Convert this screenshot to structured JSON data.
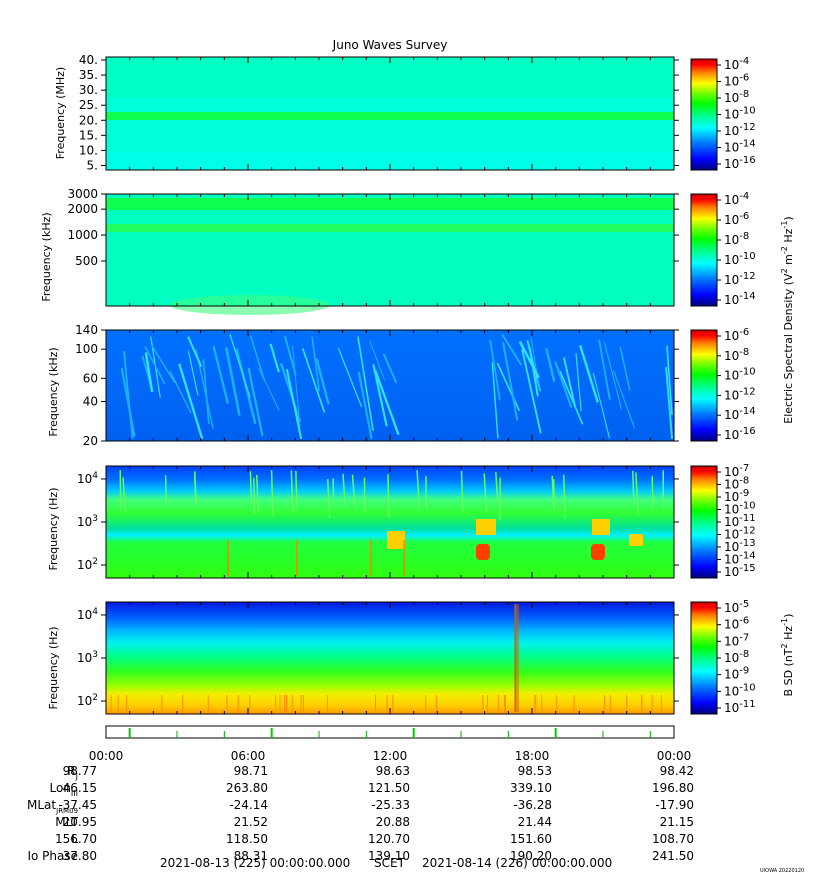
{
  "title": "Juno Waves Survey",
  "watermark": "UIOWA 20220120",
  "colorscale": [
    "#00007f",
    "#0000ff",
    "#0080ff",
    "#00ffff",
    "#00ff80",
    "#00ff00",
    "#80ff00",
    "#ffff00",
    "#ff8000",
    "#ff0000",
    "#7f0000"
  ],
  "chart_data": [
    {
      "type": "heatmap",
      "panel": 1,
      "ylabel": "Frequency (MHz)",
      "yscale": "linear",
      "ylim": [
        3.5,
        41
      ],
      "yticks": [
        5,
        10,
        15,
        20,
        25,
        30,
        35,
        40
      ],
      "yticklabels": [
        "5.",
        "10.",
        "15.",
        "20.",
        "25.",
        "30.",
        "35.",
        "40."
      ],
      "colorbar": {
        "ticks": [
          "10-4",
          "10-6",
          "10-8",
          "10-10",
          "10-12",
          "10-14",
          "10-16"
        ]
      },
      "features": [
        {
          "desc": "emission band",
          "freq": 21
        }
      ]
    },
    {
      "type": "heatmap",
      "panel": 2,
      "ylabel": "Frequency (kHz)",
      "yscale": "log",
      "ylim": [
        150,
        3000
      ],
      "yticks": [
        500,
        1000,
        2000,
        3000
      ],
      "yticklabels": [
        "500",
        "1000",
        "2000",
        "3000"
      ],
      "colorbar": {
        "ticks": [
          "10-4",
          "10-6",
          "10-8",
          "10-10",
          "10-12",
          "10-14"
        ]
      },
      "features": [
        {
          "desc": "emission band",
          "freq": 2150
        },
        {
          "desc": "emission band",
          "freq": 1100
        }
      ]
    },
    {
      "type": "heatmap",
      "panel": 3,
      "ylabel": "Frequency (kHz)",
      "yscale": "log",
      "ylim": [
        20,
        140
      ],
      "yticks": [
        20,
        40,
        60,
        100,
        140
      ],
      "yticklabels": [
        "20",
        "40",
        "60",
        "100",
        "140"
      ],
      "colorbar": {
        "ticks": [
          "10-6",
          "10-8",
          "10-10",
          "10-12",
          "10-14",
          "10-16"
        ]
      }
    },
    {
      "type": "heatmap",
      "panel": 4,
      "ylabel": "Frequency (Hz)",
      "yscale": "log",
      "ylim": [
        50,
        20000
      ],
      "yticks": [
        100,
        1000,
        10000
      ],
      "yticklabels": [
        "10^2",
        "10^3",
        "10^4"
      ],
      "colorbar": {
        "ticks": [
          "10-7",
          "10-8",
          "10-9",
          "10-10",
          "10-11",
          "10-12",
          "10-13",
          "10-14",
          "10-15"
        ]
      }
    },
    {
      "type": "heatmap",
      "panel": 5,
      "ylabel": "Frequency (Hz)",
      "yscale": "log",
      "ylim": [
        50,
        20000
      ],
      "yticks": [
        100,
        1000,
        10000
      ],
      "yticklabels": [
        "10^2",
        "10^3",
        "10^4"
      ],
      "colorbar": {
        "ticks": [
          "10-5",
          "10-6",
          "10-7",
          "10-8",
          "10-9",
          "10-10",
          "10-11"
        ]
      }
    }
  ],
  "colorbar_labels": {
    "electric": "Electric Spectral Density (V^2 m^-2 Hz^-1)",
    "magnetic": "B SD (nT^2 Hz^-1)"
  },
  "time_axis": {
    "labels": [
      "00:00",
      "06:00",
      "12:00",
      "18:00",
      "00:00"
    ],
    "range_hours": [
      0,
      24
    ]
  },
  "ephemeris": {
    "rows": [
      {
        "label": "RJ",
        "values": [
          "98.77",
          "98.71",
          "98.63",
          "98.53",
          "98.42"
        ]
      },
      {
        "label": "LonIII",
        "values": [
          "46.15",
          "263.80",
          "121.50",
          "339.10",
          "196.80"
        ]
      },
      {
        "label": "MLatJRM09",
        "values": [
          "-37.45",
          "-24.14",
          "-25.33",
          "-36.28",
          "-17.90"
        ]
      },
      {
        "label": "MLT",
        "values": [
          "20.95",
          "21.52",
          "20.88",
          "21.44",
          "21.15"
        ]
      },
      {
        "label": "L",
        "values": [
          "156.70",
          "118.50",
          "120.70",
          "151.60",
          "108.70"
        ]
      },
      {
        "label": "Io Phase",
        "values": [
          "37.80",
          "88.31",
          "139.10",
          "190.20",
          "241.50"
        ]
      }
    ]
  },
  "footer": {
    "start": "2021-08-13 (225) 00:00:00.000",
    "mid": "SCET",
    "end": "2021-08-14 (226) 00:00:00.000"
  }
}
